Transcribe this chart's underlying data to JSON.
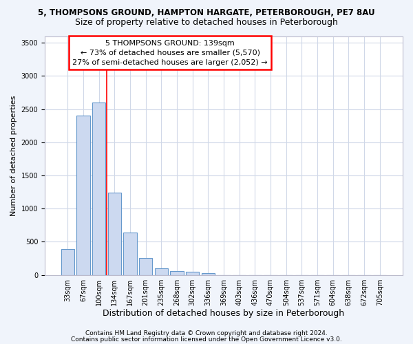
{
  "title1": "5, THOMPSONS GROUND, HAMPTON HARGATE, PETERBOROUGH, PE7 8AU",
  "title2": "Size of property relative to detached houses in Peterborough",
  "xlabel": "Distribution of detached houses by size in Peterborough",
  "ylabel": "Number of detached properties",
  "categories": [
    "33sqm",
    "67sqm",
    "100sqm",
    "134sqm",
    "167sqm",
    "201sqm",
    "235sqm",
    "268sqm",
    "302sqm",
    "336sqm",
    "369sqm",
    "403sqm",
    "436sqm",
    "470sqm",
    "504sqm",
    "537sqm",
    "571sqm",
    "604sqm",
    "638sqm",
    "672sqm",
    "705sqm"
  ],
  "values": [
    390,
    2400,
    2600,
    1240,
    640,
    255,
    100,
    55,
    45,
    30,
    0,
    0,
    0,
    0,
    0,
    0,
    0,
    0,
    0,
    0,
    0
  ],
  "bar_color": "#ccd9f0",
  "bar_edge_color": "#6699cc",
  "bar_edge_width": 0.8,
  "vline_pos": 2.5,
  "vline_color": "red",
  "vline_linewidth": 1.2,
  "annotation_text": "5 THOMPSONS GROUND: 139sqm\n← 73% of detached houses are smaller (5,570)\n27% of semi-detached houses are larger (2,052) →",
  "annotation_box_color": "red",
  "annotation_text_color": "black",
  "annotation_bg_color": "white",
  "ylim": [
    0,
    3600
  ],
  "yticks": [
    0,
    500,
    1000,
    1500,
    2000,
    2500,
    3000,
    3500
  ],
  "fig_bg_color": "#f0f4fb",
  "plot_bg_color": "#ffffff",
  "grid_color": "#d0d8e8",
  "title1_fontsize": 8.5,
  "title2_fontsize": 9,
  "ylabel_fontsize": 8,
  "xlabel_fontsize": 9,
  "tick_fontsize": 7,
  "annotation_fontsize": 8,
  "footer1": "Contains HM Land Registry data © Crown copyright and database right 2024.",
  "footer2": "Contains public sector information licensed under the Open Government Licence v3.0.",
  "footer_fontsize": 6.5
}
